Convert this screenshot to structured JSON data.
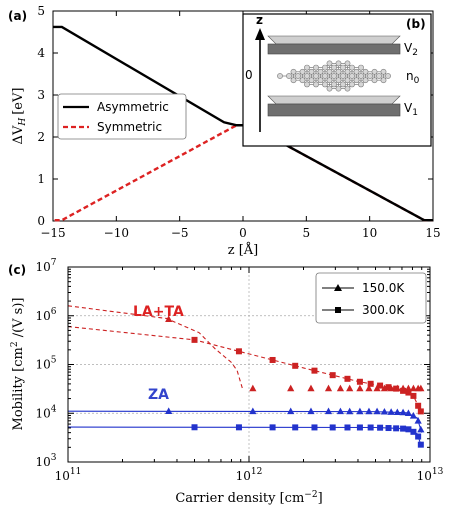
{
  "chart_data": [
    {
      "type": "line",
      "panel_label": "(a)",
      "xlabel": "z [Å]",
      "ylabel_main": "ΔV",
      "ylabel_sub": "H",
      "ylabel_unit": "[eV]",
      "xlim": [
        -15,
        15
      ],
      "ylim": [
        0,
        5
      ],
      "xticks": [
        -15,
        -10,
        -5,
        0,
        5,
        10,
        15
      ],
      "xtick_labels": [
        "−15",
        "−10",
        "−5",
        "0",
        "5",
        "10",
        "15"
      ],
      "yticks": [
        0,
        1,
        2,
        3,
        4,
        5
      ],
      "ytick_labels": [
        "0",
        "1",
        "2",
        "3",
        "4",
        "5"
      ],
      "series": [
        {
          "name": "Asymmetric",
          "color": "#000000",
          "style": "solid",
          "x": [
            -15.5,
            -14.3,
            -1.5,
            -0.5,
            0.5,
            1.0,
            14.3,
            15.5
          ],
          "y": [
            4.62,
            4.62,
            2.35,
            2.28,
            2.28,
            2.2,
            0.02,
            0.02
          ]
        },
        {
          "name": "Symmetric",
          "color": "#dd2222",
          "style": "dashed",
          "x": [
            -15.5,
            -14.3,
            -1.0,
            -0.5,
            0.5,
            1.0,
            14.3,
            15.5
          ],
          "y": [
            0.02,
            0.02,
            2.2,
            2.28,
            2.28,
            2.2,
            0.02,
            0.02
          ]
        }
      ],
      "inset": {
        "label": "(b)",
        "axis_label": "z",
        "zero_label": "0",
        "labels": [
          "V",
          "n",
          "V"
        ],
        "subs": [
          "2",
          "0",
          "1"
        ]
      }
    },
    {
      "type": "scatter",
      "panel_label": "(c)",
      "xlabel": "Carrier density [cm",
      "xlabel_sup": "−2",
      "xlabel_end": "]",
      "ylabel": "Mobility [cm",
      "ylabel_sup": "2",
      "ylabel_end": " /(V s)]",
      "xscale": "log",
      "yscale": "log",
      "xlim": [
        100000000000.0,
        10000000000000.0
      ],
      "ylim": [
        1000.0,
        10000000.0
      ],
      "xtick_exps": [
        "11",
        "12",
        "13"
      ],
      "ytick_exps": [
        "3",
        "4",
        "5",
        "6",
        "7"
      ],
      "tick_base": "10",
      "legend": [
        "150.0K",
        "300.0K"
      ],
      "annotations": [
        {
          "text": "LA+TA",
          "color": "#dd2222"
        },
        {
          "text": "ZA",
          "color": "#3344cc"
        }
      ],
      "series": [
        {
          "name": "150.0K",
          "group": "LA+TA",
          "marker": "triangle",
          "color": "#cc2222",
          "x": [
            100000000000.0,
            350000000000.0,
            530000000000.0,
            650000000000.0,
            740000000000.0,
            800000000000.0,
            860000000000.0,
            920000000000.0
          ],
          "y": [
            1600000.0,
            880000.0,
            450000.0,
            210000.0,
            140000.0,
            110000.0,
            75000.0,
            32000.0
          ],
          "marker_x": [
            360000000000.0,
            1050000000000.0,
            1700000000000.0,
            2200000000000.0,
            2750000000000.0,
            3200000000000.0,
            3600000000000.0,
            4100000000000.0,
            4600000000000.0,
            5100000000000.0,
            5600000000000.0,
            6100000000000.0,
            6600000000000.0,
            7100000000000.0,
            7600000000000.0,
            8100000000000.0,
            8600000000000.0,
            8900000000000.0
          ]
        },
        {
          "name": "300.0K",
          "group": "LA+TA",
          "marker": "square",
          "color": "#cc2222",
          "x": [
            100000000000.0,
            500000000000.0,
            1000000000000.0,
            2000000000000.0,
            4000000000000.0,
            6500000000000.0,
            8000000000000.0,
            9000000000000.0
          ],
          "y": [
            600000.0,
            320000.0,
            165000.0,
            85000.0,
            45000.0,
            32000.0,
            25000.0,
            10000.0
          ],
          "marker_x": [
            500000000000.0,
            880000000000.0,
            1350000000000.0,
            1800000000000.0,
            2300000000000.0,
            2900000000000.0,
            3500000000000.0,
            4100000000000.0,
            4700000000000.0,
            5300000000000.0,
            5900000000000.0,
            6500000000000.0,
            7100000000000.0,
            7600000000000.0,
            8100000000000.0,
            8600000000000.0,
            8900000000000.0
          ]
        },
        {
          "name": "150.0K",
          "group": "ZA",
          "marker": "triangle",
          "color": "#2233cc",
          "x": [
            100000000000.0,
            5000000000000.0,
            7500000000000.0,
            8500000000000.0,
            9000000000000.0
          ],
          "y": [
            11000.0,
            10800.0,
            10200.0,
            8000.0,
            4000.0
          ],
          "marker_x": [
            360000000000.0,
            1050000000000.0,
            1700000000000.0,
            2200000000000.0,
            2750000000000.0,
            3200000000000.0,
            3600000000000.0,
            4100000000000.0,
            4600000000000.0,
            5100000000000.0,
            5600000000000.0,
            6100000000000.0,
            6600000000000.0,
            7100000000000.0,
            7600000000000.0,
            8100000000000.0,
            8600000000000.0,
            8900000000000.0
          ]
        },
        {
          "name": "300.0K",
          "group": "ZA",
          "marker": "square",
          "color": "#2233cc",
          "x": [
            100000000000.0,
            5000000000000.0,
            7500000000000.0,
            8500000000000.0,
            9000000000000.0
          ],
          "y": [
            5200.0,
            5100.0,
            4800.0,
            3800.0,
            2000.0
          ],
          "marker_x": [
            500000000000.0,
            880000000000.0,
            1350000000000.0,
            1800000000000.0,
            2300000000000.0,
            2900000000000.0,
            3500000000000.0,
            4100000000000.0,
            4700000000000.0,
            5300000000000.0,
            5900000000000.0,
            6500000000000.0,
            7100000000000.0,
            7600000000000.0,
            8100000000000.0,
            8600000000000.0,
            8900000000000.0
          ]
        }
      ]
    }
  ]
}
